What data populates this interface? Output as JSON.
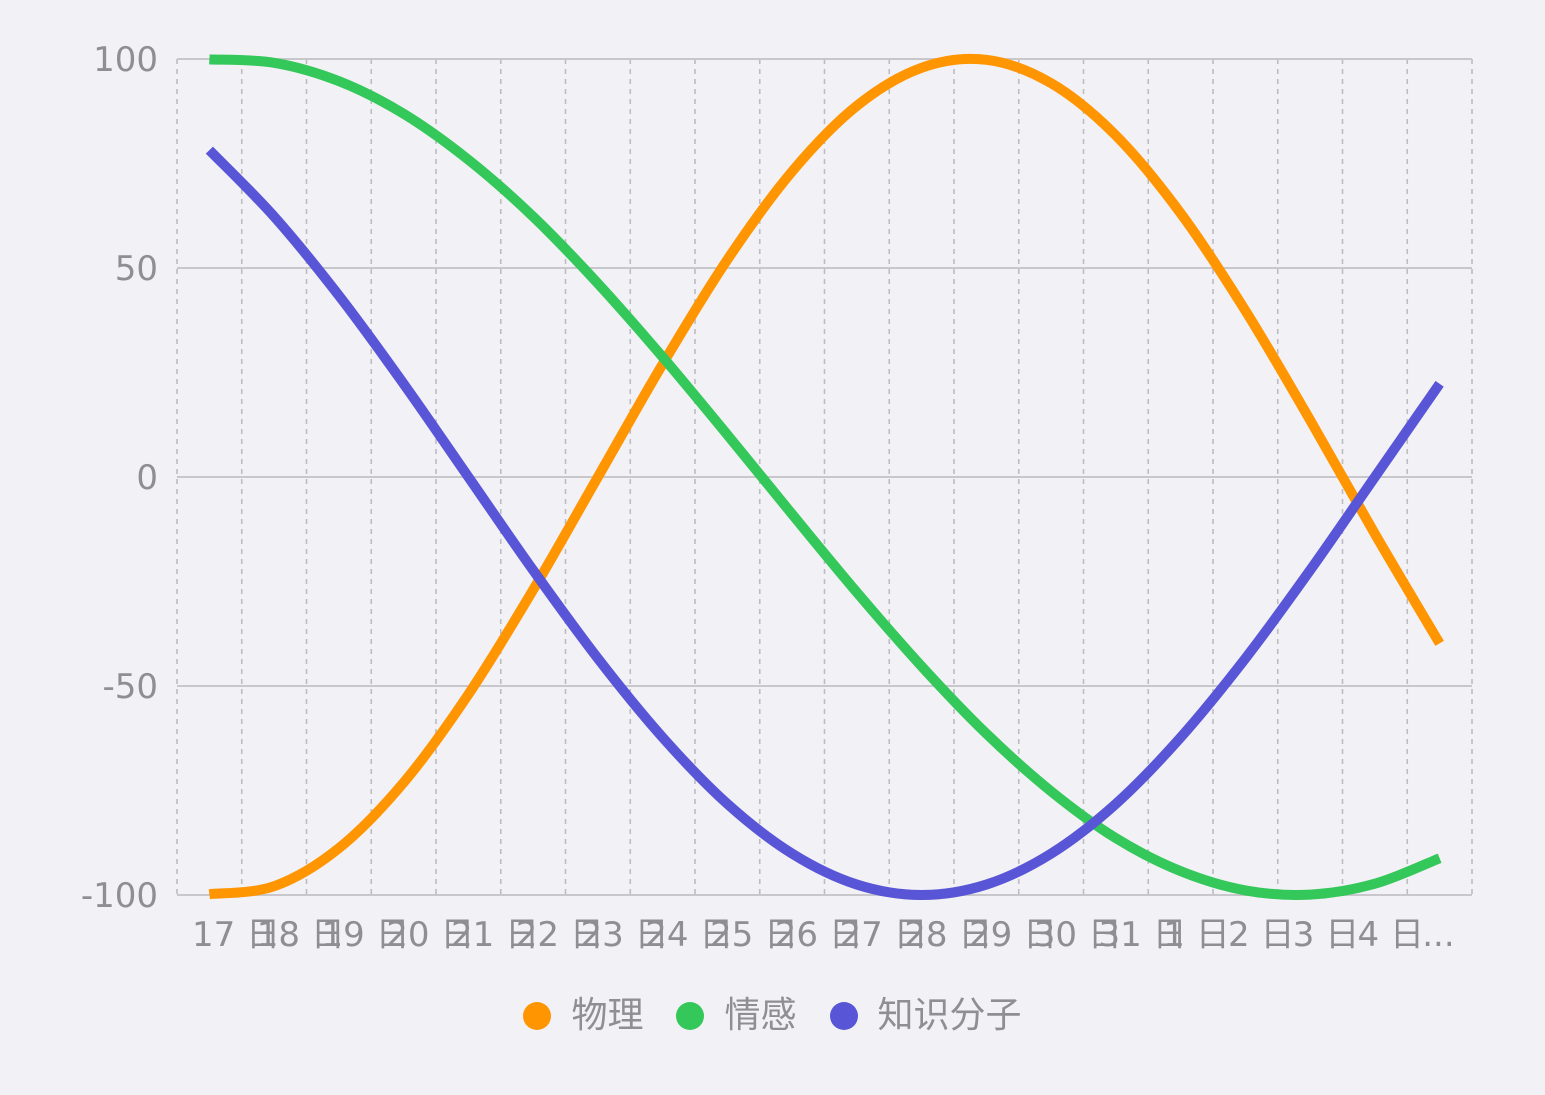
{
  "chart_data": {
    "type": "line",
    "categories": [
      "17 日",
      "18 日",
      "19 日",
      "20 日",
      "21 日",
      "22 日",
      "23 日",
      "24 日",
      "25 日",
      "26 日",
      "27 日",
      "28 日",
      "29 日",
      "30 日",
      "31 日",
      "1 日",
      "2 日",
      "3 日",
      "4 日",
      "..."
    ],
    "y_ticks": [
      100,
      50,
      0,
      -50,
      -100
    ],
    "ylim": [
      -100,
      100
    ],
    "grid": {
      "horizontal": "solid",
      "vertical": "dashed"
    },
    "legend_position": "bottom-center",
    "series": [
      {
        "name": "物理",
        "color": "#ff9500",
        "values": [
          -99.8,
          -97.9,
          -88.8,
          -73.1,
          -52.0,
          -27.0,
          0.0,
          27.0,
          52.0,
          73.1,
          88.8,
          97.9,
          99.8,
          94.2,
          81.7,
          63.1,
          39.8,
          13.6,
          -13.6,
          -39.8
        ]
      },
      {
        "name": "情感",
        "color": "#34c759",
        "values": [
          99.9,
          99.1,
          94.7,
          86.9,
          75.9,
          62.3,
          46.3,
          28.7,
          10.1,
          -8.9,
          -27.6,
          -45.3,
          -61.4,
          -75.2,
          -86.4,
          -94.3,
          -98.9,
          -99.9,
          -97.3,
          -91.2
        ]
      },
      {
        "name": "知识分子",
        "color": "#5856d6",
        "values": [
          78.2,
          62.3,
          43.4,
          22.3,
          0.0,
          -22.3,
          -43.4,
          -62.3,
          -78.2,
          -90.1,
          -97.5,
          -100.0,
          -97.5,
          -90.1,
          -78.2,
          -62.3,
          -43.4,
          -22.3,
          0.0,
          22.3
        ]
      }
    ]
  },
  "colors": {
    "background": "#f2f1f6",
    "grid_solid": "#c7c7cc",
    "grid_dashed": "#bcbcc1",
    "label": "#8e8e93"
  }
}
